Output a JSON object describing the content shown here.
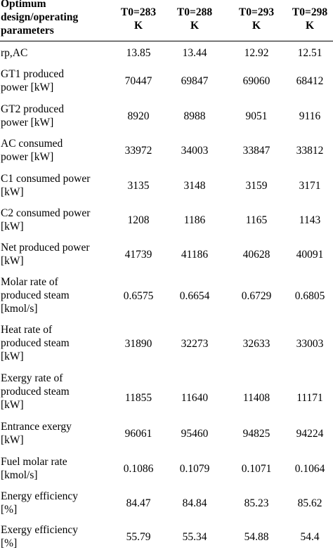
{
  "table": {
    "header": {
      "label": [
        "Optimum",
        "design/operating",
        "parameters"
      ],
      "columns": [
        [
          "T0=283",
          "K"
        ],
        [
          "T0=288",
          "K"
        ],
        [
          "T0=293",
          "K"
        ],
        [
          "T0=298",
          "K"
        ]
      ]
    },
    "rows": [
      {
        "label": [
          "rp,AC"
        ],
        "values": [
          "13.85",
          "13.44",
          "12.92",
          "12.51"
        ]
      },
      {
        "label": [
          "GT1 produced",
          "power [kW]"
        ],
        "values": [
          "70447",
          "69847",
          "69060",
          "68412"
        ]
      },
      {
        "label": [
          "GT2 produced",
          "power [kW]"
        ],
        "values": [
          "8920",
          "8988",
          "9051",
          "9116"
        ]
      },
      {
        "label": [
          "AC consumed",
          "power [kW]"
        ],
        "values": [
          "33972",
          "34003",
          "33847",
          "33812"
        ]
      },
      {
        "label": [
          "C1 consumed power",
          "[kW]"
        ],
        "values": [
          "3135",
          "3148",
          "3159",
          "3171"
        ]
      },
      {
        "label": [
          "C2 consumed power",
          "[kW]"
        ],
        "values": [
          "1208",
          "1186",
          "1165",
          "1143"
        ]
      },
      {
        "label": [
          "Net produced power",
          "[kW]"
        ],
        "values": [
          "41739",
          "41186",
          "40628",
          "40091"
        ]
      },
      {
        "label": [
          "Molar rate of",
          "produced steam",
          "[kmol/s]"
        ],
        "values": [
          "0.6575",
          "0.6654",
          "0.6729",
          "0.6805"
        ]
      },
      {
        "label": [
          "Heat rate of",
          "produced steam",
          "[kW]"
        ],
        "values": [
          "31890",
          "32273",
          "32633",
          "33003"
        ]
      },
      {
        "label": [
          "Exergy rate of",
          "produced steam",
          "[kW]"
        ],
        "values": [
          "11855",
          "11640",
          "11408",
          "11171"
        ]
      },
      {
        "label": [
          "Entrance exergy",
          "[kW]"
        ],
        "values": [
          "96061",
          "95460",
          "94825",
          "94224"
        ]
      },
      {
        "label": [
          "Fuel molar rate",
          "[kmol/s]"
        ],
        "values": [
          "0.1086",
          "0.1079",
          "0.1071",
          "0.1064"
        ]
      },
      {
        "label": [
          "Energy efficiency",
          "[%]"
        ],
        "values": [
          "84.47",
          "84.84",
          "85.23",
          "85.62"
        ]
      },
      {
        "label": [
          "Exergy efficiency",
          "[%]"
        ],
        "values": [
          "55.79",
          "55.34",
          "54.88",
          "54.4"
        ]
      }
    ]
  }
}
